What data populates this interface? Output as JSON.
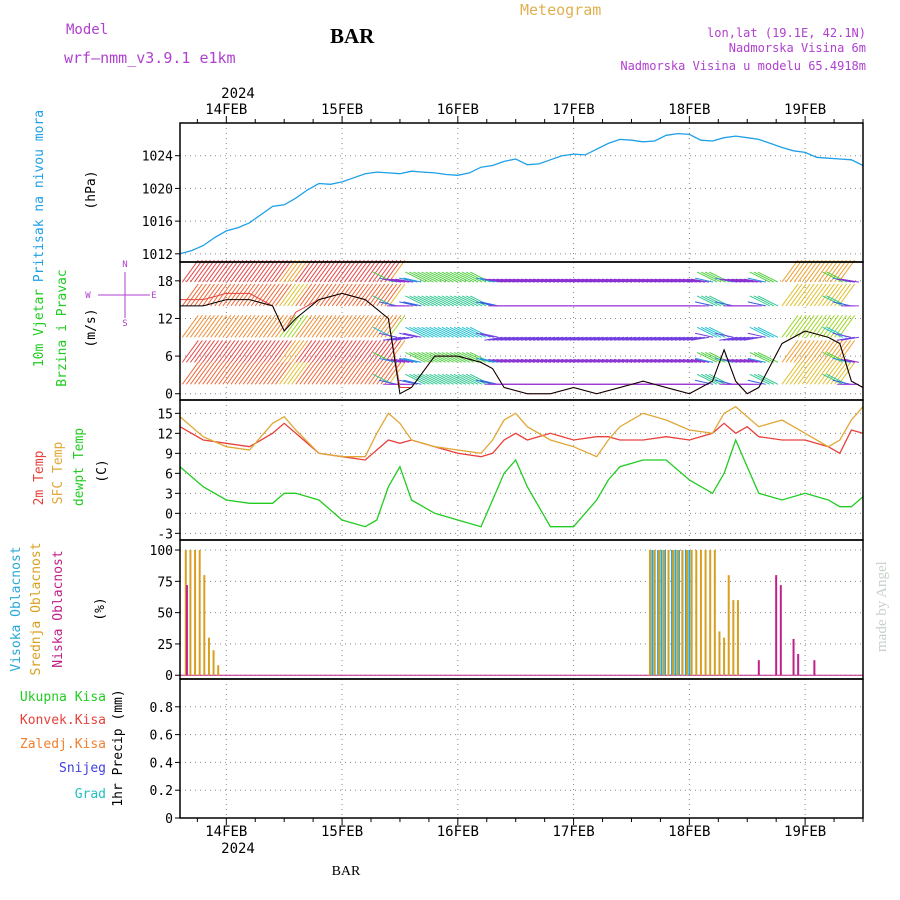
{
  "header": {
    "model_label": "Model",
    "model_name": "wrf—nmm_v3.9.1  e1km",
    "station": "BAR",
    "meteogram_title": "Meteogram",
    "lonlat": "lon,lat (19.1E, 42.1N)",
    "elevation": "Nadmorska Visina 6m",
    "model_elevation": "Nadmorska Visina u modelu 65.4918m",
    "footer_station": "BAR",
    "credit": "made by Angel"
  },
  "time_axis": {
    "year": "2024",
    "day_labels": [
      "14FEB",
      "15FEB",
      "16FEB",
      "17FEB",
      "18FEB",
      "19FEB"
    ],
    "start_day": 13.6,
    "end_day": 19.5
  },
  "colors": {
    "pressure": "#1ea0e6",
    "t2m": "#e8413c",
    "sfc": "#e0a838",
    "dewpt": "#22cc22",
    "high_cloud": "#28a8d8",
    "mid_cloud": "#d8a020",
    "low_cloud": "#c0208a",
    "wind_label": "#22cc22",
    "purple": "#b040d0"
  },
  "panels": {
    "pressure": {
      "label": "Pritisak na nivou mora",
      "unit": "(hPa)"
    },
    "wind": {
      "label1": "10m  Vjetar",
      "label2": "Brzina i Pravac",
      "unit": "(m/s)",
      "compass": {
        "n": "N",
        "s": "S",
        "e": "E",
        "w": "W"
      }
    },
    "temp": {
      "label1": "2m Temp",
      "label2": "SFC Temp",
      "label3": "dewpt Temp",
      "unit": "(C)"
    },
    "cloud": {
      "label1": "Visoka Oblacnost",
      "label2": "Srednja Oblacnost",
      "label3": "Niska  Oblacnost",
      "unit": "(%)"
    },
    "precip": {
      "label": "1hr Precip (mm)",
      "legend": [
        "Ukupna  Kisa",
        "Konvek.Kisa",
        "Zaledj.Kisa",
        "Snijeg",
        "Grad"
      ],
      "legend_colors": [
        "#22cc22",
        "#e8413c",
        "#f08030",
        "#4040e0",
        "#20c0c0"
      ]
    }
  },
  "chart_data": [
    {
      "type": "line",
      "name": "pressure",
      "ylim": [
        1011,
        1028
      ],
      "yticks": [
        1012,
        1016,
        1020,
        1024
      ],
      "x": [
        13.6,
        13.7,
        13.8,
        13.9,
        14.0,
        14.1,
        14.2,
        14.3,
        14.4,
        14.5,
        14.6,
        14.7,
        14.8,
        14.9,
        15.0,
        15.1,
        15.2,
        15.3,
        15.4,
        15.5,
        15.6,
        15.7,
        15.8,
        15.9,
        16.0,
        16.1,
        16.2,
        16.3,
        16.4,
        16.5,
        16.6,
        16.7,
        16.8,
        16.9,
        17.0,
        17.1,
        17.2,
        17.3,
        17.4,
        17.5,
        17.6,
        17.7,
        17.8,
        17.9,
        18.0,
        18.1,
        18.2,
        18.3,
        18.4,
        18.5,
        18.6,
        18.7,
        18.8,
        18.9,
        19.0,
        19.1,
        19.2,
        19.3,
        19.4,
        19.5
      ],
      "values": [
        1012.0,
        1012.4,
        1013.0,
        1014.0,
        1014.8,
        1015.2,
        1015.8,
        1016.8,
        1017.8,
        1018.0,
        1018.8,
        1019.8,
        1020.6,
        1020.5,
        1020.8,
        1021.3,
        1021.8,
        1022.0,
        1021.9,
        1021.8,
        1022.1,
        1022.0,
        1021.9,
        1021.7,
        1021.6,
        1021.9,
        1022.6,
        1022.8,
        1023.3,
        1023.6,
        1022.9,
        1023.0,
        1023.5,
        1024.0,
        1024.2,
        1024.1,
        1024.8,
        1025.5,
        1026.0,
        1025.9,
        1025.7,
        1025.8,
        1026.5,
        1026.7,
        1026.6,
        1025.9,
        1025.8,
        1026.2,
        1026.4,
        1026.2,
        1026.0,
        1025.5,
        1025.0,
        1024.6,
        1024.4,
        1023.8,
        1023.7,
        1023.6,
        1023.5,
        1022.8
      ]
    },
    {
      "type": "line",
      "name": "wind",
      "ylim": [
        -1,
        21
      ],
      "yticks": [
        0,
        6,
        12,
        18
      ],
      "x": [
        13.6,
        13.8,
        14.0,
        14.2,
        14.4,
        14.5,
        14.6,
        14.8,
        15.0,
        15.2,
        15.4,
        15.5,
        15.6,
        15.8,
        16.0,
        16.2,
        16.3,
        16.4,
        16.6,
        16.8,
        17.0,
        17.2,
        17.4,
        17.6,
        17.8,
        18.0,
        18.2,
        18.3,
        18.4,
        18.5,
        18.6,
        18.8,
        19.0,
        19.2,
        19.3,
        19.4,
        19.5
      ],
      "values": [
        14,
        14,
        15,
        15,
        14,
        10,
        12,
        15,
        16,
        15,
        12,
        0,
        1,
        6,
        6,
        5,
        4,
        1,
        0,
        0,
        1,
        0,
        1,
        2,
        1,
        0,
        2,
        7,
        2,
        0,
        1,
        8,
        10,
        9,
        8,
        2,
        1
      ],
      "gust": [
        15,
        15,
        16,
        16,
        14,
        10,
        13,
        15,
        16,
        15,
        12,
        1,
        1,
        6,
        6,
        5,
        4,
        1,
        0,
        0,
        1,
        0,
        1,
        2,
        1,
        0,
        2,
        7,
        2,
        0,
        1,
        8,
        10,
        9,
        8,
        2,
        1
      ]
    },
    {
      "type": "line",
      "name": "temperature",
      "ylim": [
        -4,
        17
      ],
      "yticks": [
        -3,
        0,
        3,
        6,
        9,
        12,
        15
      ],
      "x": [
        13.6,
        13.8,
        14.0,
        14.2,
        14.4,
        14.5,
        14.6,
        14.8,
        15.0,
        15.2,
        15.3,
        15.4,
        15.5,
        15.6,
        15.8,
        16.0,
        16.2,
        16.3,
        16.4,
        16.5,
        16.6,
        16.8,
        17.0,
        17.2,
        17.3,
        17.4,
        17.6,
        17.8,
        18.0,
        18.2,
        18.3,
        18.4,
        18.5,
        18.6,
        18.8,
        19.0,
        19.2,
        19.3,
        19.4,
        19.5
      ],
      "series": [
        {
          "name": "2m Temp",
          "values": [
            13,
            11,
            10.5,
            10,
            12,
            13.5,
            12,
            9,
            8.5,
            8,
            9.5,
            11,
            10.5,
            11,
            10,
            9,
            8.5,
            9,
            11,
            12,
            11,
            12,
            11,
            11.5,
            11.5,
            11,
            11,
            11.5,
            11,
            12,
            13.5,
            12,
            13,
            11.5,
            11,
            11,
            10,
            9,
            12.5,
            12
          ]
        },
        {
          "name": "SFC Temp",
          "values": [
            14.5,
            11.5,
            10,
            9.5,
            13.5,
            14.5,
            12.5,
            9,
            8.5,
            8.5,
            12,
            15,
            13.5,
            11,
            10,
            9.5,
            9,
            11,
            14,
            15,
            13,
            11,
            10,
            8.5,
            11,
            13,
            15,
            14,
            12.5,
            12,
            15,
            16,
            14.5,
            13,
            14,
            12,
            10,
            11,
            14,
            16
          ]
        },
        {
          "name": "dewpt Temp",
          "values": [
            7,
            4,
            2,
            1.5,
            1.5,
            3,
            3,
            2,
            -1,
            -2,
            -1,
            4,
            7,
            2,
            0,
            -1,
            -2,
            2,
            6,
            8,
            4,
            -2,
            -2,
            2,
            5,
            7,
            8,
            8,
            5,
            3,
            6,
            11,
            7,
            3,
            2,
            3,
            2,
            1,
            1,
            2.5
          ]
        }
      ]
    },
    {
      "type": "bar",
      "name": "cloud",
      "ylim": [
        -3,
        108
      ],
      "yticks": [
        0,
        25,
        50,
        75,
        100
      ],
      "series": [
        {
          "name": "Visoka Oblacnost",
          "x": [
            17.68,
            17.7,
            17.73,
            17.76,
            17.79,
            17.82,
            17.85,
            17.88,
            17.91,
            17.94,
            17.97,
            18.0
          ],
          "values": [
            100,
            100,
            100,
            100,
            100,
            100,
            100,
            100,
            100,
            100,
            100,
            100
          ]
        },
        {
          "name": "Srednja Oblacnost",
          "x": [
            13.65,
            13.69,
            13.73,
            13.77,
            13.81,
            13.85,
            13.89,
            13.93,
            17.66,
            17.7,
            17.74,
            17.78,
            17.82,
            17.86,
            17.9,
            17.94,
            17.98,
            18.02,
            18.06,
            18.1,
            18.14,
            18.18,
            18.22,
            18.26,
            18.3,
            18.34,
            18.38,
            18.42
          ],
          "values": [
            100,
            100,
            100,
            100,
            80,
            30,
            20,
            8,
            100,
            100,
            100,
            100,
            100,
            100,
            100,
            100,
            100,
            100,
            100,
            100,
            100,
            100,
            100,
            35,
            30,
            80,
            60,
            60
          ]
        },
        {
          "name": "Niska  Oblacnost",
          "x": [
            13.66,
            18.6,
            18.75,
            18.79,
            18.9,
            18.94,
            19.08
          ],
          "values": [
            72,
            12,
            80,
            72,
            29,
            17,
            12
          ]
        }
      ]
    },
    {
      "type": "bar",
      "name": "precipitation",
      "ylim": [
        0,
        1.0
      ],
      "yticks": [
        0,
        0.2,
        0.4,
        0.6,
        0.8
      ],
      "values": []
    }
  ]
}
